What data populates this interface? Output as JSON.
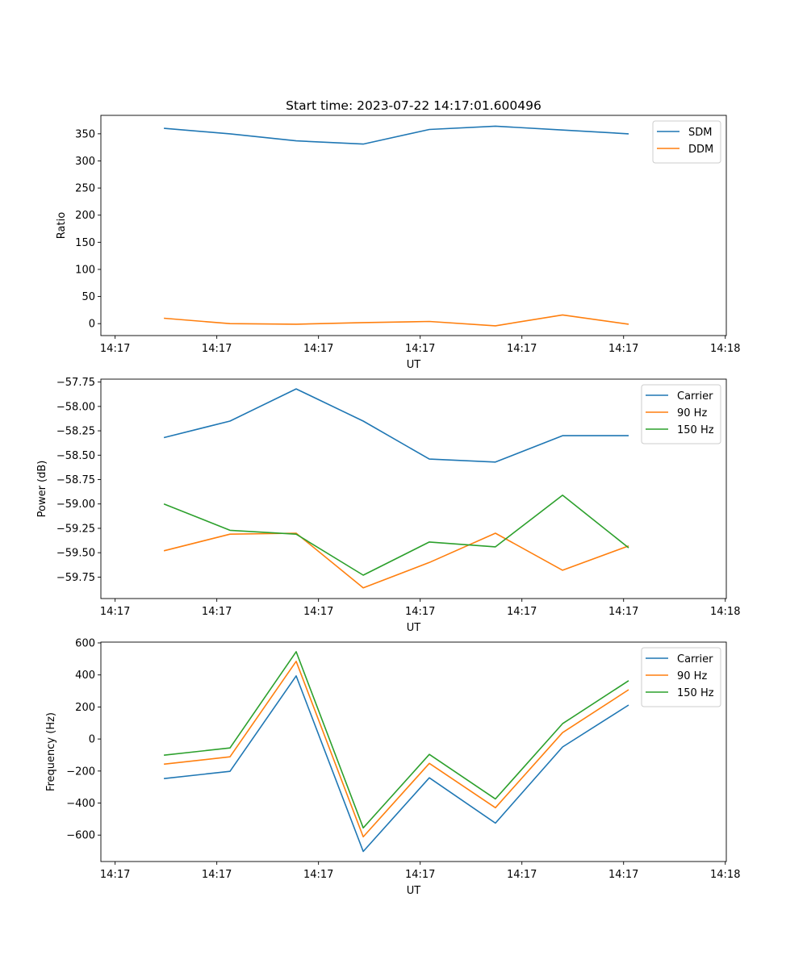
{
  "chart_data": [
    {
      "type": "line",
      "title": "Start time: 2023-07-22 14:17:01.600496",
      "xlabel": "UT",
      "ylabel": "Ratio",
      "x_units": "seconds after 14:17:00",
      "x": [
        4.8,
        11.3,
        17.8,
        24.4,
        30.9,
        37.4,
        44.0,
        50.5
      ],
      "xlim": [
        -1.4,
        60.1
      ],
      "xticks": [
        0,
        10,
        20,
        30,
        40,
        50,
        60
      ],
      "xtick_labels": [
        "14:17",
        "14:17",
        "14:17",
        "14:17",
        "14:17",
        "14:17",
        "14:18"
      ],
      "ylim": [
        -22,
        384
      ],
      "yticks": [
        0,
        50,
        100,
        150,
        200,
        250,
        300,
        350
      ],
      "ytick_labels": [
        "0",
        "50",
        "100",
        "150",
        "200",
        "250",
        "300",
        "350"
      ],
      "legend": "top-right",
      "grid": false,
      "series": [
        {
          "name": "SDM",
          "color": "#1f77b4",
          "values": [
            360,
            350,
            337,
            331,
            358,
            364,
            357,
            350
          ]
        },
        {
          "name": "DDM",
          "color": "#ff7f0e",
          "values": [
            10,
            0,
            -1,
            2,
            4,
            -4,
            16,
            -1
          ]
        }
      ]
    },
    {
      "type": "line",
      "title": "",
      "xlabel": "UT",
      "ylabel": "Power (dB)",
      "x_units": "seconds after 14:17:00",
      "x": [
        4.8,
        11.3,
        17.8,
        24.4,
        30.9,
        37.4,
        44.0,
        50.5
      ],
      "xlim": [
        -1.4,
        60.1
      ],
      "xticks": [
        0,
        10,
        20,
        30,
        40,
        50,
        60
      ],
      "xtick_labels": [
        "14:17",
        "14:17",
        "14:17",
        "14:17",
        "14:17",
        "14:17",
        "14:18"
      ],
      "ylim": [
        -59.97,
        -57.72
      ],
      "yticks": [
        -57.75,
        -58.0,
        -58.25,
        -58.5,
        -58.75,
        -59.0,
        -59.25,
        -59.5,
        -59.75
      ],
      "ytick_labels": [
        "−57.75",
        "−58.00",
        "−58.25",
        "−58.50",
        "−58.75",
        "−59.00",
        "−59.25",
        "−59.50",
        "−59.75"
      ],
      "legend": "top-right",
      "grid": false,
      "series": [
        {
          "name": "Carrier",
          "color": "#1f77b4",
          "values": [
            -58.32,
            -58.15,
            -57.82,
            -58.15,
            -58.54,
            -58.57,
            -58.3,
            -58.3
          ]
        },
        {
          "name": "90 Hz",
          "color": "#ff7f0e",
          "values": [
            -59.48,
            -59.31,
            -59.3,
            -59.86,
            -59.6,
            -59.3,
            -59.68,
            -59.43
          ]
        },
        {
          "name": "150 Hz",
          "color": "#2ca02c",
          "values": [
            -59.0,
            -59.27,
            -59.31,
            -59.73,
            -59.39,
            -59.44,
            -58.91,
            -59.45
          ]
        }
      ]
    },
    {
      "type": "line",
      "title": "",
      "xlabel": "UT",
      "ylabel": "Frequency (Hz)",
      "x_units": "seconds after 14:17:00",
      "x": [
        4.8,
        11.3,
        17.8,
        24.4,
        30.9,
        37.4,
        44.0,
        50.5
      ],
      "xlim": [
        -1.4,
        60.1
      ],
      "xticks": [
        0,
        10,
        20,
        30,
        40,
        50,
        60
      ],
      "xtick_labels": [
        "14:17",
        "14:17",
        "14:17",
        "14:17",
        "14:17",
        "14:17",
        "14:18"
      ],
      "ylim": [
        -765,
        605
      ],
      "yticks": [
        600,
        400,
        200,
        0,
        -200,
        -400,
        -600
      ],
      "ytick_labels": [
        "600",
        "400",
        "200",
        "0",
        "−200",
        "−400",
        "−600"
      ],
      "legend": "top-right",
      "grid": false,
      "series": [
        {
          "name": "Carrier",
          "color": "#1f77b4",
          "values": [
            -247,
            -202,
            394,
            -702,
            -242,
            -525,
            -50,
            212
          ]
        },
        {
          "name": "90 Hz",
          "color": "#ff7f0e",
          "values": [
            -157,
            -111,
            485,
            -611,
            -152,
            -429,
            40,
            308
          ]
        },
        {
          "name": "150 Hz",
          "color": "#2ca02c",
          "values": [
            -101,
            -56,
            545,
            -555,
            -96,
            -374,
            96,
            364
          ]
        }
      ]
    }
  ]
}
